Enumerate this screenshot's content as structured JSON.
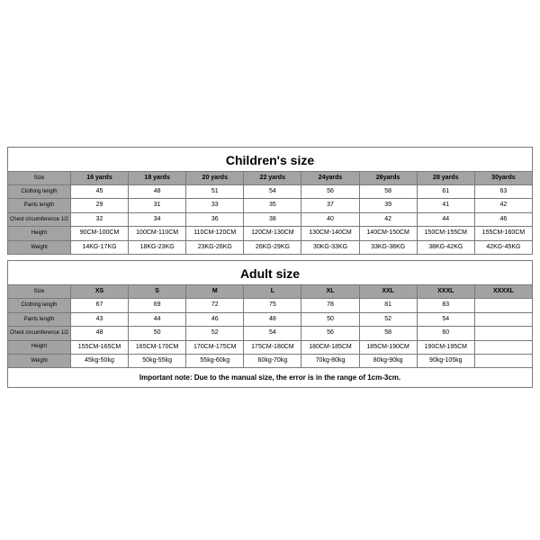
{
  "children": {
    "title": "Children's size",
    "row_label_header": "Size",
    "headers": [
      "16 yards",
      "18 yards",
      "20 yards",
      "22 yards",
      "24yards",
      "26yards",
      "28 yards",
      "30yards"
    ],
    "rows": [
      {
        "label": "Clothing length",
        "cells": [
          "45",
          "48",
          "51",
          "54",
          "56",
          "58",
          "61",
          "63"
        ]
      },
      {
        "label": "Pants length",
        "cells": [
          "29",
          "31",
          "33",
          "35",
          "37",
          "39",
          "41",
          "42"
        ]
      },
      {
        "label": "Chest circumference 1/2",
        "cells": [
          "32",
          "34",
          "36",
          "38",
          "40",
          "42",
          "44",
          "46"
        ]
      },
      {
        "label": "Height",
        "cells": [
          "90CM-100CM",
          "100CM-110CM",
          "110CM-120CM",
          "120CM-130CM",
          "130CM-140CM",
          "140CM-150CM",
          "150CM-155CM",
          "155CM-160CM"
        ]
      },
      {
        "label": "Weight",
        "cells": [
          "14KG-17KG",
          "18KG-23KG",
          "23KG-26KG",
          "26KG-29KG",
          "30KG-33KG",
          "33KG-38KG",
          "38KG-42KG",
          "42KG-45KG"
        ]
      }
    ]
  },
  "adult": {
    "title": "Adult size",
    "row_label_header": "Size",
    "headers": [
      "XS",
      "S",
      "M",
      "L",
      "XL",
      "XXL",
      "XXXL",
      "XXXXL"
    ],
    "rows": [
      {
        "label": "Clothing length",
        "cells": [
          "67",
          "69",
          "72",
          "75",
          "78",
          "81",
          "83",
          ""
        ]
      },
      {
        "label": "Pants length",
        "cells": [
          "43",
          "44",
          "46",
          "48",
          "50",
          "52",
          "54",
          ""
        ]
      },
      {
        "label": "Chest circumference 1/2",
        "cells": [
          "48",
          "50",
          "52",
          "54",
          "56",
          "58",
          "60",
          ""
        ]
      },
      {
        "label": "Height",
        "cells": [
          "155CM-165CM",
          "165CM-170CM",
          "170CM-175CM",
          "175CM-180CM",
          "180CM-185CM",
          "185CM-190CM",
          "190CM-195CM",
          ""
        ]
      },
      {
        "label": "Weight",
        "cells": [
          "45kg-50kg",
          "50kg-55kg",
          "55kg-60kg",
          "60kg-70kg",
          "70kg-80kg",
          "80kg-90kg",
          "90kg-105kg",
          ""
        ]
      }
    ]
  },
  "note": "Important note: Due to the manual size, the error is in the range of 1cm-3cm.",
  "style": {
    "header_bg": "#a3a3a3",
    "border_color": "#7a7a7a",
    "page_bg": "#ffffff",
    "title_fontsize": 14,
    "cell_fontsize": 7,
    "label_fontsize": 6,
    "note_fontsize": 8
  }
}
